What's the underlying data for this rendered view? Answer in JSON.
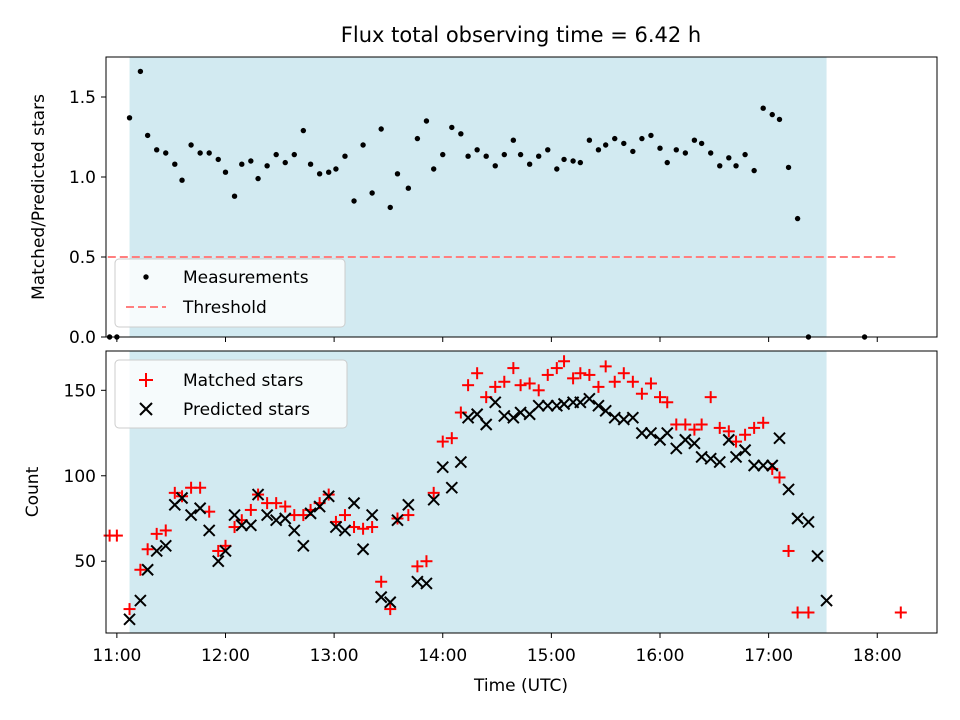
{
  "title": "Flux total observing time = 6.42 h",
  "colors": {
    "observing_span": "#add8e6",
    "measurements": "#000000",
    "threshold": "#ff7f7f",
    "matched": "#ff0000",
    "predicted": "#000000"
  },
  "chart_data": [
    {
      "type": "scatter",
      "panel": "top",
      "ylabel": "Matched/Predicted stars",
      "ylim": [
        0,
        1.75
      ],
      "yticks": [
        "0.0",
        "0.5",
        "1.0",
        "1.5"
      ],
      "xlim": [
        "10:54",
        "18:33"
      ],
      "shaded_span": [
        "11:07",
        "17:32"
      ],
      "legend": {
        "position": "lower-left",
        "entries": [
          "Measurements",
          "Threshold"
        ]
      },
      "threshold": {
        "name": "Threshold",
        "value": 0.5,
        "x_range": [
          "10:55",
          "18:10"
        ],
        "style": "dashed"
      },
      "series": [
        {
          "name": "Measurements",
          "marker": "dot",
          "points": [
            [
              "10:56",
              0
            ],
            [
              "11:00",
              0
            ],
            [
              "11:07",
              1.37
            ],
            [
              "11:13",
              1.66
            ],
            [
              "11:17",
              1.26
            ],
            [
              "11:22",
              1.17
            ],
            [
              "11:27",
              1.15
            ],
            [
              "11:32",
              1.08
            ],
            [
              "11:36",
              0.98
            ],
            [
              "11:41",
              1.2
            ],
            [
              "11:46",
              1.15
            ],
            [
              "11:51",
              1.15
            ],
            [
              "11:56",
              1.11
            ],
            [
              "12:00",
              1.03
            ],
            [
              "12:05",
              0.88
            ],
            [
              "12:09",
              1.08
            ],
            [
              "12:14",
              1.1
            ],
            [
              "12:18",
              0.99
            ],
            [
              "12:23",
              1.07
            ],
            [
              "12:28",
              1.14
            ],
            [
              "12:33",
              1.09
            ],
            [
              "12:38",
              1.14
            ],
            [
              "12:43",
              1.29
            ],
            [
              "12:47",
              1.08
            ],
            [
              "12:52",
              1.02
            ],
            [
              "12:57",
              1.03
            ],
            [
              "13:01",
              1.05
            ],
            [
              "13:06",
              1.13
            ],
            [
              "13:11",
              0.85
            ],
            [
              "13:16",
              1.2
            ],
            [
              "13:21",
              0.9
            ],
            [
              "13:26",
              1.3
            ],
            [
              "13:31",
              0.81
            ],
            [
              "13:35",
              1.02
            ],
            [
              "13:41",
              0.93
            ],
            [
              "13:46",
              1.24
            ],
            [
              "13:51",
              1.35
            ],
            [
              "13:55",
              1.05
            ],
            [
              "14:00",
              1.14
            ],
            [
              "14:05",
              1.31
            ],
            [
              "14:10",
              1.27
            ],
            [
              "14:14",
              1.13
            ],
            [
              "14:19",
              1.17
            ],
            [
              "14:24",
              1.13
            ],
            [
              "14:29",
              1.07
            ],
            [
              "14:34",
              1.14
            ],
            [
              "14:39",
              1.23
            ],
            [
              "14:43",
              1.14
            ],
            [
              "14:48",
              1.08
            ],
            [
              "14:53",
              1.13
            ],
            [
              "14:58",
              1.17
            ],
            [
              "15:03",
              1.05
            ],
            [
              "15:07",
              1.11
            ],
            [
              "15:12",
              1.1
            ],
            [
              "15:16",
              1.09
            ],
            [
              "15:21",
              1.23
            ],
            [
              "15:26",
              1.17
            ],
            [
              "15:30",
              1.2
            ],
            [
              "15:35",
              1.24
            ],
            [
              "15:40",
              1.21
            ],
            [
              "15:45",
              1.16
            ],
            [
              "15:50",
              1.24
            ],
            [
              "15:55",
              1.26
            ],
            [
              "16:00",
              1.18
            ],
            [
              "16:04",
              1.09
            ],
            [
              "16:09",
              1.17
            ],
            [
              "16:14",
              1.15
            ],
            [
              "16:19",
              1.23
            ],
            [
              "16:23",
              1.21
            ],
            [
              "16:28",
              1.15
            ],
            [
              "16:33",
              1.07
            ],
            [
              "16:38",
              1.12
            ],
            [
              "16:42",
              1.07
            ],
            [
              "16:47",
              1.14
            ],
            [
              "16:52",
              1.04
            ],
            [
              "16:57",
              1.43
            ],
            [
              "17:02",
              1.39
            ],
            [
              "17:06",
              1.36
            ],
            [
              "17:11",
              1.06
            ],
            [
              "17:16",
              0.74
            ],
            [
              "17:22",
              0
            ],
            [
              "17:53",
              0
            ]
          ]
        }
      ]
    },
    {
      "type": "scatter",
      "panel": "bottom",
      "xlabel": "Time (UTC)",
      "ylabel": "Count",
      "ylim": [
        8,
        173
      ],
      "yticks": [
        "50",
        "100",
        "150"
      ],
      "xlim": [
        "10:54",
        "18:33"
      ],
      "xticks": [
        "11:00",
        "12:00",
        "13:00",
        "14:00",
        "15:00",
        "16:00",
        "17:00",
        "18:00"
      ],
      "shaded_span": [
        "11:07",
        "17:32"
      ],
      "legend": {
        "position": "upper-left",
        "entries": [
          "Matched stars",
          "Predicted stars"
        ]
      },
      "series": [
        {
          "name": "Matched stars",
          "marker": "plus",
          "color": "#ff0000",
          "points": [
            [
              "10:56",
              65
            ],
            [
              "11:00",
              65
            ],
            [
              "11:07",
              22
            ],
            [
              "11:13",
              45
            ],
            [
              "11:17",
              57
            ],
            [
              "11:22",
              66
            ],
            [
              "11:27",
              68
            ],
            [
              "11:32",
              90
            ],
            [
              "11:36",
              88
            ],
            [
              "11:41",
              93
            ],
            [
              "11:46",
              93
            ],
            [
              "11:51",
              79
            ],
            [
              "11:56",
              56
            ],
            [
              "12:00",
              59
            ],
            [
              "12:05",
              70
            ],
            [
              "12:09",
              74
            ],
            [
              "12:14",
              80
            ],
            [
              "12:18",
              89
            ],
            [
              "12:23",
              84
            ],
            [
              "12:28",
              84
            ],
            [
              "12:33",
              82
            ],
            [
              "12:38",
              77
            ],
            [
              "12:43",
              77
            ],
            [
              "12:47",
              80
            ],
            [
              "12:52",
              84
            ],
            [
              "12:57",
              89
            ],
            [
              "13:01",
              73
            ],
            [
              "13:06",
              77
            ],
            [
              "13:11",
              70
            ],
            [
              "13:16",
              69
            ],
            [
              "13:21",
              70
            ],
            [
              "13:26",
              38
            ],
            [
              "13:31",
              22
            ],
            [
              "13:35",
              75
            ],
            [
              "13:41",
              77
            ],
            [
              "13:46",
              47
            ],
            [
              "13:51",
              50
            ],
            [
              "13:55",
              90
            ],
            [
              "14:00",
              120
            ],
            [
              "14:05",
              122
            ],
            [
              "14:10",
              137
            ],
            [
              "14:14",
              153
            ],
            [
              "14:19",
              160
            ],
            [
              "14:24",
              146
            ],
            [
              "14:29",
              152
            ],
            [
              "14:34",
              155
            ],
            [
              "14:39",
              163
            ],
            [
              "14:43",
              153
            ],
            [
              "14:48",
              154
            ],
            [
              "14:53",
              150
            ],
            [
              "14:58",
              159
            ],
            [
              "15:03",
              163
            ],
            [
              "15:07",
              167
            ],
            [
              "15:12",
              157
            ],
            [
              "15:16",
              160
            ],
            [
              "15:21",
              159
            ],
            [
              "15:26",
              152
            ],
            [
              "15:30",
              164
            ],
            [
              "15:35",
              155
            ],
            [
              "15:40",
              160
            ],
            [
              "15:45",
              155
            ],
            [
              "15:50",
              148
            ],
            [
              "15:55",
              154
            ],
            [
              "16:00",
              146
            ],
            [
              "16:04",
              143
            ],
            [
              "16:09",
              130
            ],
            [
              "16:14",
              130
            ],
            [
              "16:19",
              127
            ],
            [
              "16:23",
              130
            ],
            [
              "16:28",
              146
            ],
            [
              "16:33",
              128
            ],
            [
              "16:38",
              126
            ],
            [
              "16:42",
              120
            ],
            [
              "16:47",
              124
            ],
            [
              "16:52",
              128
            ],
            [
              "16:57",
              131
            ],
            [
              "17:02",
              104
            ],
            [
              "17:06",
              99
            ],
            [
              "17:11",
              56
            ],
            [
              "17:16",
              20
            ],
            [
              "17:22",
              20
            ],
            [
              "18:13",
              20
            ]
          ]
        },
        {
          "name": "Predicted stars",
          "marker": "x",
          "color": "#000000",
          "points": [
            [
              "11:07",
              16
            ],
            [
              "11:13",
              27
            ],
            [
              "11:17",
              45
            ],
            [
              "11:22",
              56
            ],
            [
              "11:27",
              59
            ],
            [
              "11:32",
              83
            ],
            [
              "11:36",
              87
            ],
            [
              "11:41",
              77
            ],
            [
              "11:46",
              81
            ],
            [
              "11:51",
              68
            ],
            [
              "11:56",
              50
            ],
            [
              "12:00",
              56
            ],
            [
              "12:05",
              77
            ],
            [
              "12:09",
              71
            ],
            [
              "12:14",
              71
            ],
            [
              "12:18",
              89
            ],
            [
              "12:23",
              77
            ],
            [
              "12:28",
              74
            ],
            [
              "12:33",
              75
            ],
            [
              "12:38",
              68
            ],
            [
              "12:43",
              59
            ],
            [
              "12:47",
              78
            ],
            [
              "12:52",
              82
            ],
            [
              "12:57",
              88
            ],
            [
              "13:01",
              70
            ],
            [
              "13:06",
              68
            ],
            [
              "13:11",
              84
            ],
            [
              "13:16",
              57
            ],
            [
              "13:21",
              77
            ],
            [
              "13:26",
              29
            ],
            [
              "13:31",
              26
            ],
            [
              "13:35",
              74
            ],
            [
              "13:41",
              83
            ],
            [
              "13:46",
              38
            ],
            [
              "13:51",
              37
            ],
            [
              "13:55",
              86
            ],
            [
              "14:00",
              105
            ],
            [
              "14:05",
              93
            ],
            [
              "14:10",
              108
            ],
            [
              "14:14",
              134
            ],
            [
              "14:19",
              136
            ],
            [
              "14:24",
              130
            ],
            [
              "14:29",
              143
            ],
            [
              "14:34",
              135
            ],
            [
              "14:39",
              134
            ],
            [
              "14:43",
              137
            ],
            [
              "14:48",
              136
            ],
            [
              "14:53",
              141
            ],
            [
              "14:58",
              141
            ],
            [
              "15:03",
              141
            ],
            [
              "15:07",
              142
            ],
            [
              "15:12",
              143
            ],
            [
              "15:16",
              143
            ],
            [
              "15:21",
              145
            ],
            [
              "15:26",
              141
            ],
            [
              "15:30",
              138
            ],
            [
              "15:35",
              134
            ],
            [
              "15:40",
              133
            ],
            [
              "15:45",
              134
            ],
            [
              "15:50",
              125
            ],
            [
              "15:55",
              125
            ],
            [
              "16:00",
              121
            ],
            [
              "16:04",
              125
            ],
            [
              "16:09",
              116
            ],
            [
              "16:14",
              121
            ],
            [
              "16:19",
              119
            ],
            [
              "16:23",
              111
            ],
            [
              "16:28",
              110
            ],
            [
              "16:33",
              108
            ],
            [
              "16:38",
              121
            ],
            [
              "16:42",
              111
            ],
            [
              "16:47",
              115
            ],
            [
              "16:52",
              106
            ],
            [
              "16:57",
              106
            ],
            [
              "17:02",
              106
            ],
            [
              "17:06",
              122
            ],
            [
              "17:11",
              92
            ],
            [
              "17:16",
              75
            ],
            [
              "17:22",
              73
            ],
            [
              "17:27",
              53
            ],
            [
              "17:32",
              27
            ]
          ]
        }
      ]
    }
  ]
}
